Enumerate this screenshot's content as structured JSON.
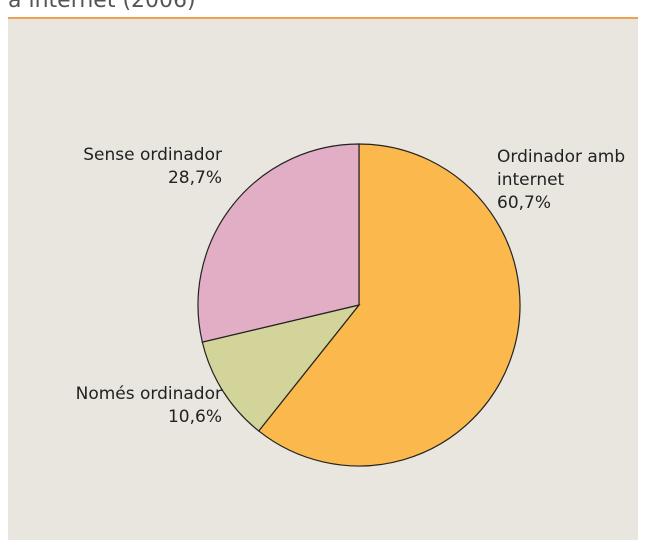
{
  "chart_data": {
    "type": "pie",
    "title": "a internet (2006)",
    "categories": [
      "Ordinador amb internet",
      "Només ordinador",
      "Sense ordinador"
    ],
    "values": [
      60.7,
      10.6,
      28.7
    ],
    "value_labels": [
      "60,7%",
      "10,6%",
      "28,7%"
    ],
    "colors": [
      "#fbb84c",
      "#d3d49a",
      "#e2aec6"
    ]
  }
}
